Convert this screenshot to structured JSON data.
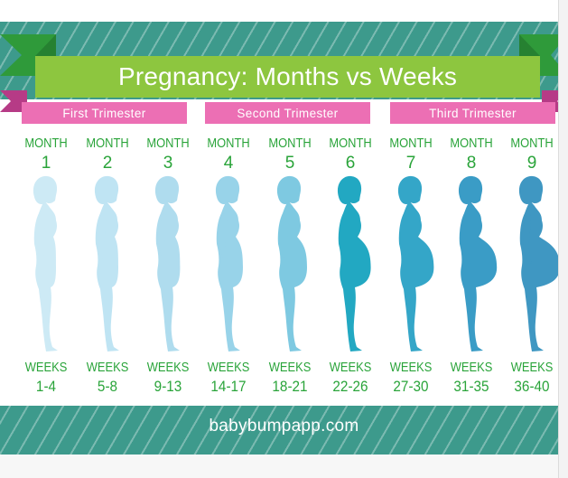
{
  "title": "Pregnancy: Months vs Weeks",
  "trimesters": [
    {
      "label": "First Trimester"
    },
    {
      "label": "Second Trimester"
    },
    {
      "label": "Third Trimester"
    }
  ],
  "month_word": "MONTH",
  "weeks_word": "WEEKS",
  "months": [
    {
      "month": "1",
      "weeks": "1-4",
      "color": "#cdeaf5",
      "belly": 0.0
    },
    {
      "month": "2",
      "weeks": "5-8",
      "color": "#bfe4f3",
      "belly": 0.05
    },
    {
      "month": "3",
      "weeks": "9-13",
      "color": "#afdcee",
      "belly": 0.12
    },
    {
      "month": "4",
      "weeks": "14-17",
      "color": "#98d3e9",
      "belly": 0.25
    },
    {
      "month": "5",
      "weeks": "18-21",
      "color": "#7ec9e1",
      "belly": 0.4
    },
    {
      "month": "6",
      "weeks": "22-26",
      "color": "#22a8c2",
      "belly": 0.58
    },
    {
      "month": "7",
      "weeks": "27-30",
      "color": "#34a6c8",
      "belly": 0.72
    },
    {
      "month": "8",
      "weeks": "31-35",
      "color": "#3a9cc6",
      "belly": 0.86
    },
    {
      "month": "9",
      "weeks": "36-40",
      "color": "#3f97c2",
      "belly": 1.0
    }
  ],
  "footer": "babybumpapp.com",
  "colors": {
    "banner_green": "#8dc63f",
    "ribbon_pink": "#ec6fb4",
    "ribbon_dark_pink": "#b63b86",
    "band_teal": "#3d9a8c",
    "text_green": "#2aa43a"
  }
}
